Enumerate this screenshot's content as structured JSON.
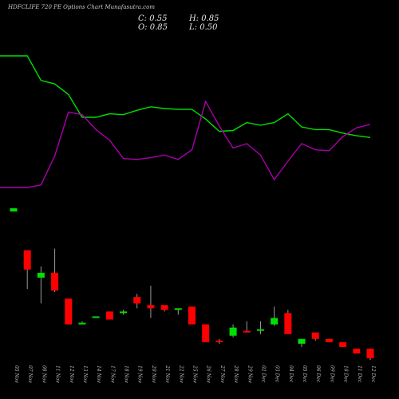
{
  "header": {
    "title": "HDFCLIFE 720 PE Options Chart Munafasutra.com",
    "close": "C: 0.55",
    "high": "H: 0.85",
    "open": "O: 0.85",
    "low": "L: 0.50"
  },
  "chart_data": {
    "type": "candlestick",
    "title": "HDFCLIFE 720 PE Options Chart Munafasutra.com",
    "categories": [
      "05 Nov",
      "07 Nov",
      "08 Nov",
      "11 Nov",
      "12 Nov",
      "13 Nov",
      "14 Nov",
      "17 Nov",
      "18 Nov",
      "19 Nov",
      "20 Nov",
      "21 Nov",
      "22 Nov",
      "25 Nov",
      "26 Nov",
      "27 Nov",
      "28 Nov",
      "29 Nov",
      "02 Dec",
      "03 Dec",
      "04 Dec",
      "05 Dec",
      "06 Dec",
      "09 Dec",
      "10 Dec",
      "11 Dec",
      "12 Dec"
    ],
    "candles": [
      {
        "o": 5.2,
        "h": 5.2,
        "l": 5.1,
        "c": 5.1,
        "color": "green"
      },
      {
        "o": 3.9,
        "h": 3.9,
        "l": 2.7,
        "c": 3.3,
        "color": "red"
      },
      {
        "o": 3.2,
        "h": 3.4,
        "l": 2.25,
        "c": 3.05,
        "color": "green"
      },
      {
        "o": 3.2,
        "h": 3.95,
        "l": 2.6,
        "c": 2.65,
        "color": "red"
      },
      {
        "o": 2.4,
        "h": 2.4,
        "l": 1.6,
        "c": 1.6,
        "color": "red"
      },
      {
        "o": 1.6,
        "h": 1.7,
        "l": 1.6,
        "c": 1.65,
        "color": "green"
      },
      {
        "o": 1.8,
        "h": 1.85,
        "l": 1.8,
        "c": 1.85,
        "color": "green"
      },
      {
        "o": 2.0,
        "h": 2.0,
        "l": 1.75,
        "c": 1.75,
        "color": "red"
      },
      {
        "o": 1.95,
        "h": 2.05,
        "l": 1.9,
        "c": 2.0,
        "color": "green"
      },
      {
        "o": 2.25,
        "h": 2.55,
        "l": 2.1,
        "c": 2.45,
        "color": "red"
      },
      {
        "o": 2.2,
        "h": 2.8,
        "l": 1.8,
        "c": 2.1,
        "color": "red"
      },
      {
        "o": 2.2,
        "h": 2.2,
        "l": 2.0,
        "c": 2.05,
        "color": "red"
      },
      {
        "o": 2.05,
        "h": 2.1,
        "l": 1.9,
        "c": 2.1,
        "color": "green"
      },
      {
        "o": 2.15,
        "h": 2.15,
        "l": 1.6,
        "c": 1.6,
        "color": "red"
      },
      {
        "o": 1.6,
        "h": 1.6,
        "l": 1.05,
        "c": 1.05,
        "color": "red"
      },
      {
        "o": 1.1,
        "h": 1.15,
        "l": 1.0,
        "c": 1.05,
        "color": "red"
      },
      {
        "o": 1.25,
        "h": 1.6,
        "l": 1.2,
        "c": 1.5,
        "color": "green"
      },
      {
        "o": 1.4,
        "h": 1.7,
        "l": 1.35,
        "c": 1.35,
        "color": "red"
      },
      {
        "o": 1.4,
        "h": 1.7,
        "l": 1.3,
        "c": 1.45,
        "color": "green"
      },
      {
        "o": 1.6,
        "h": 2.15,
        "l": 1.55,
        "c": 1.8,
        "color": "green"
      },
      {
        "o": 1.95,
        "h": 2.05,
        "l": 1.3,
        "c": 1.3,
        "color": "red"
      },
      {
        "o": 1.15,
        "h": 1.15,
        "l": 0.9,
        "c": 1.0,
        "color": "green"
      },
      {
        "o": 1.35,
        "h": 1.35,
        "l": 1.1,
        "c": 1.15,
        "color": "red"
      },
      {
        "o": 1.15,
        "h": 1.15,
        "l": 1.05,
        "c": 1.05,
        "color": "red"
      },
      {
        "o": 1.05,
        "h": 1.05,
        "l": 0.9,
        "c": 0.9,
        "color": "red"
      },
      {
        "o": 0.85,
        "h": 0.85,
        "l": 0.7,
        "c": 0.7,
        "color": "red"
      },
      {
        "o": 0.85,
        "h": 0.85,
        "l": 0.5,
        "c": 0.55,
        "color": "red"
      }
    ],
    "indicator_lines": [
      {
        "color": "#00e000",
        "values": [
          9.6,
          9.6,
          8.2,
          8.0,
          7.4,
          6.1,
          6.1,
          6.3,
          6.25,
          6.5,
          6.7,
          6.6,
          6.55,
          6.55,
          6.0,
          5.3,
          5.35,
          5.8,
          5.65,
          5.8,
          6.3,
          5.55,
          5.4,
          5.4,
          5.2,
          5.05,
          4.95
        ]
      },
      {
        "color": "#aa00aa",
        "values": [
          2.1,
          2.1,
          2.25,
          3.9,
          6.4,
          6.25,
          5.4,
          4.8,
          3.75,
          3.7,
          3.8,
          3.95,
          3.7,
          4.25,
          7.0,
          5.6,
          4.35,
          4.6,
          3.95,
          2.55,
          3.6,
          4.6,
          4.25,
          4.2,
          5.0,
          5.5,
          5.7
        ]
      }
    ],
    "xlabel": "",
    "ylabel": "",
    "grid": false
  }
}
